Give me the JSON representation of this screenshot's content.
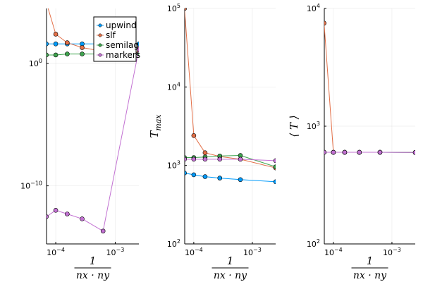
{
  "chart_data": [
    {
      "type": "line",
      "xscale": "log10",
      "yscale": "log10",
      "xlim": [
        7e-05,
        0.0025
      ],
      "ylim_exp": [
        -14.75,
        4.5
      ],
      "xticks": [
        {
          "v": 0.0001,
          "base": "10",
          "exp": "−4"
        },
        {
          "v": 0.001,
          "base": "10",
          "exp": "−3"
        }
      ],
      "yticks": [
        {
          "v": 1,
          "base": "10",
          "exp": "0"
        },
        {
          "v": 1e-10,
          "base": "10",
          "exp": "−10"
        }
      ],
      "xlabel_num": "1",
      "xlabel_den": "nx · ny",
      "ylabel": "",
      "legend": {
        "placement": "top-right",
        "entries": [
          "upwind",
          "slf",
          "semilag",
          "markers"
        ]
      },
      "x": [
        6.94e-05,
        0.0001,
        0.000156,
        0.000278,
        0.000625,
        0.0025
      ],
      "series": [
        {
          "name": "upwind",
          "color": "#009AFA",
          "values": [
            40,
            40,
            40,
            40,
            40,
            40
          ]
        },
        {
          "name": "slf",
          "color": "#E36F47",
          "values": [
            100000,
            250,
            50,
            20,
            10,
            8
          ]
        },
        {
          "name": "semilag",
          "color": "#3EA44E",
          "values": [
            5,
            5,
            6,
            6,
            6,
            6
          ]
        },
        {
          "name": "markers",
          "color": "#C271D2",
          "values": [
            3e-13,
            1e-12,
            5e-13,
            2e-13,
            2e-14,
            15
          ]
        }
      ]
    },
    {
      "type": "line",
      "xscale": "log10",
      "yscale": "log10",
      "xlim": [
        7e-05,
        0.0025
      ],
      "ylim": [
        100,
        100000
      ],
      "xticks": [
        {
          "v": 0.0001,
          "base": "10",
          "exp": "−4"
        },
        {
          "v": 0.001,
          "base": "10",
          "exp": "−3"
        }
      ],
      "yticks": [
        {
          "v": 100,
          "base": "10",
          "exp": "2"
        },
        {
          "v": 1000,
          "base": "10",
          "exp": "3"
        },
        {
          "v": 10000,
          "base": "10",
          "exp": "4"
        },
        {
          "v": 100000,
          "base": "10",
          "exp": "5"
        }
      ],
      "xlabel_num": "1",
      "xlabel_den": "nx · ny",
      "ylabel_main": "T",
      "ylabel_sub": "max",
      "x": [
        6.94e-05,
        0.0001,
        0.000156,
        0.000278,
        0.000625,
        0.0025
      ],
      "series": [
        {
          "name": "upwind",
          "color": "#009AFA",
          "values": [
            800,
            760,
            720,
            690,
            660,
            620
          ]
        },
        {
          "name": "slf",
          "color": "#E36F47",
          "values": [
            100000,
            2400,
            1450,
            1300,
            1200,
            930
          ]
        },
        {
          "name": "semilag",
          "color": "#3EA44E",
          "values": [
            1260,
            1260,
            1280,
            1320,
            1340,
            960
          ]
        },
        {
          "name": "markers",
          "color": "#C271D2",
          "values": [
            1200,
            1200,
            1200,
            1200,
            1200,
            1150
          ]
        }
      ]
    },
    {
      "type": "line",
      "xscale": "log10",
      "yscale": "log10",
      "xlim": [
        7e-05,
        0.0025
      ],
      "ylim": [
        100,
        10000
      ],
      "xticks": [
        {
          "v": 0.0001,
          "base": "10",
          "exp": "−4"
        },
        {
          "v": 0.001,
          "base": "10",
          "exp": "−3"
        }
      ],
      "yticks": [
        {
          "v": 100,
          "base": "10",
          "exp": "2"
        },
        {
          "v": 1000,
          "base": "10",
          "exp": "3"
        },
        {
          "v": 10000,
          "base": "10",
          "exp": "4"
        }
      ],
      "xlabel_num": "1",
      "xlabel_den": "nx · ny",
      "ylabel_main": "⟨ T ⟩",
      "x": [
        6.94e-05,
        0.0001,
        0.000156,
        0.000278,
        0.000625,
        0.0025
      ],
      "series": [
        {
          "name": "upwind",
          "color": "#009AFA",
          "values": [
            600,
            600,
            600,
            600,
            600,
            598
          ]
        },
        {
          "name": "slf",
          "color": "#E36F47",
          "values": [
            7500,
            600,
            600,
            600,
            600,
            598
          ]
        },
        {
          "name": "semilag",
          "color": "#3EA44E",
          "values": [
            600,
            600,
            600,
            600,
            600,
            598
          ]
        },
        {
          "name": "markers",
          "color": "#C271D2",
          "values": [
            600,
            600,
            600,
            600,
            600,
            598
          ]
        }
      ]
    }
  ]
}
